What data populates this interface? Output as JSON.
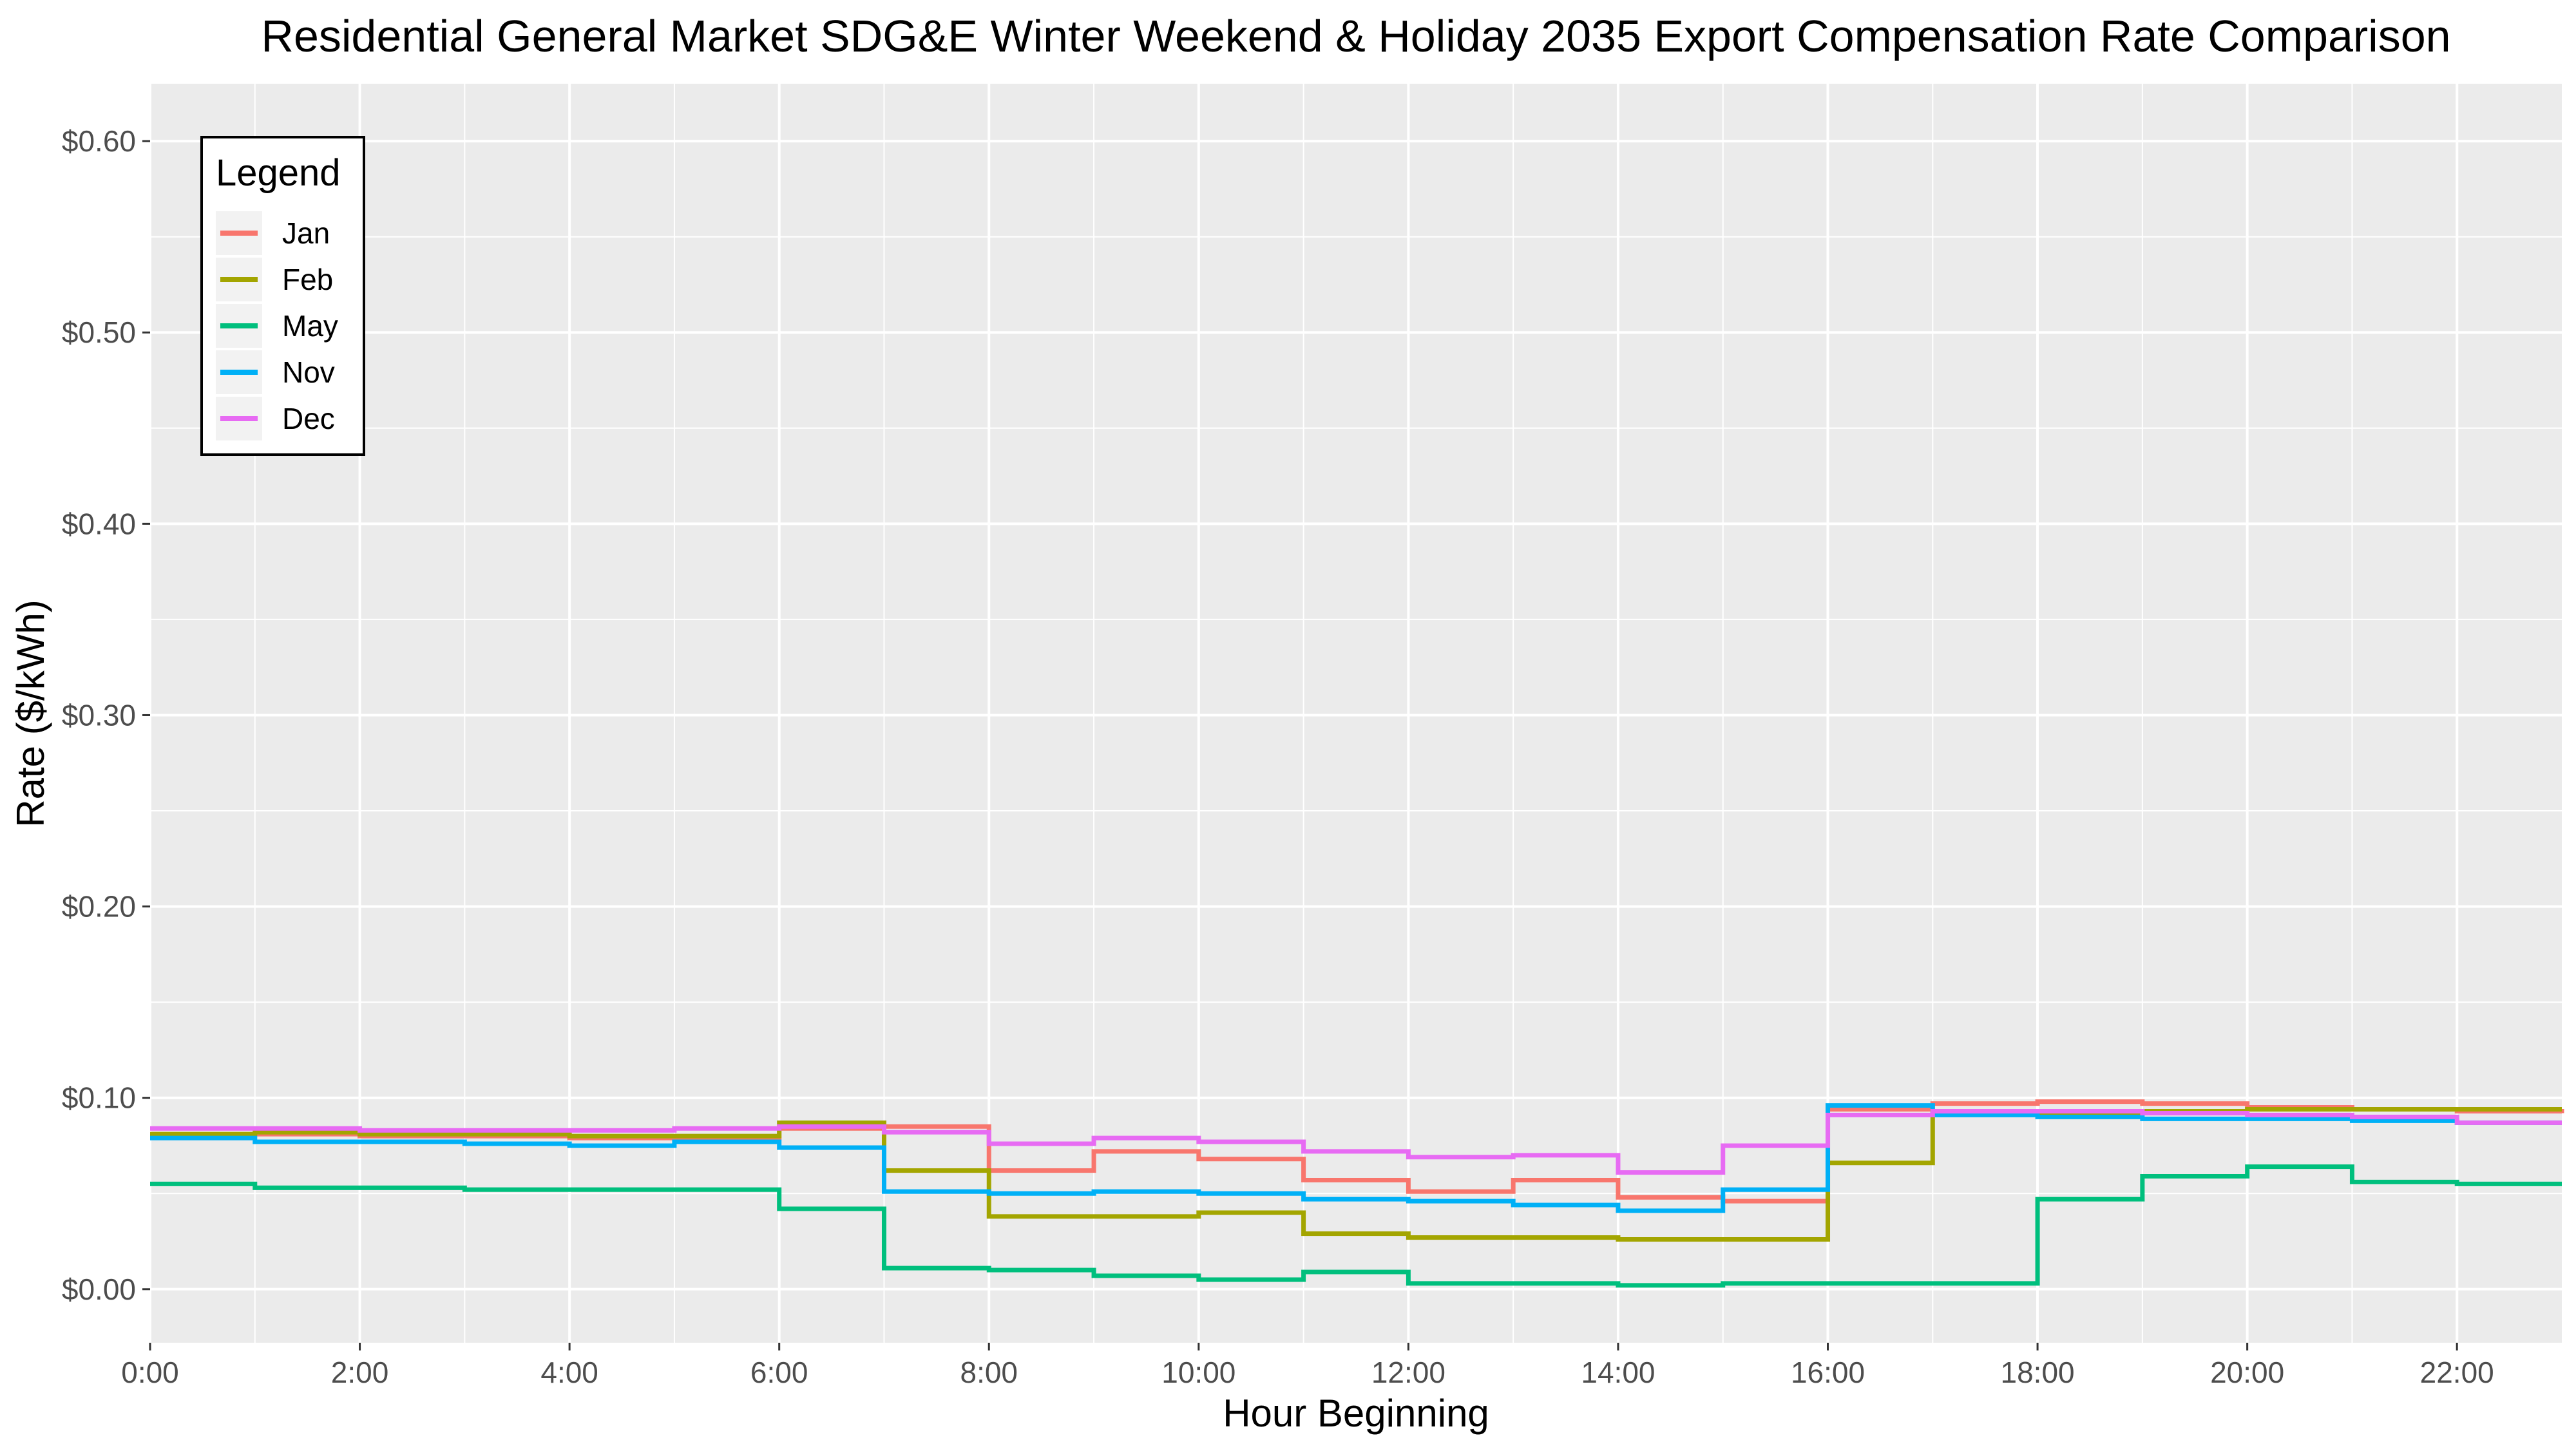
{
  "chart_data": {
    "type": "line",
    "step": true,
    "title": "Residential General Market SDG&E Winter Weekend & Holiday 2035 Export Compensation Rate Comparison",
    "xlabel": "Hour Beginning",
    "ylabel": "Rate ($/kWh)",
    "xlim": [
      0,
      23
    ],
    "ylim": [
      -0.028,
      0.63
    ],
    "x_ticks": [
      0,
      2,
      4,
      6,
      8,
      10,
      12,
      14,
      16,
      18,
      20,
      22
    ],
    "x_tick_labels": [
      "0:00",
      "2:00",
      "4:00",
      "6:00",
      "8:00",
      "10:00",
      "12:00",
      "14:00",
      "16:00",
      "18:00",
      "20:00",
      "22:00"
    ],
    "y_ticks": [
      0,
      0.1,
      0.2,
      0.3,
      0.4,
      0.5,
      0.6
    ],
    "y_tick_labels": [
      "$0.00",
      "$0.10",
      "$0.20",
      "$0.30",
      "$0.40",
      "$0.50",
      "$0.60"
    ],
    "grid": true,
    "legend": {
      "title": "Legend",
      "position": "top-left"
    },
    "x": [
      0,
      1,
      2,
      3,
      4,
      5,
      6,
      7,
      8,
      9,
      10,
      11,
      12,
      13,
      14,
      15,
      16,
      17,
      18,
      19,
      20,
      21,
      22,
      23
    ],
    "series": [
      {
        "name": "Jan",
        "color": "#F8766D",
        "values": [
          0.081,
          0.081,
          0.08,
          0.08,
          0.079,
          0.079,
          0.084,
          0.085,
          0.062,
          0.072,
          0.068,
          0.057,
          0.051,
          0.057,
          0.048,
          0.046,
          0.094,
          0.097,
          0.098,
          0.097,
          0.095,
          0.094,
          0.093,
          0.092
        ]
      },
      {
        "name": "Feb",
        "color": "#A3A500",
        "values": [
          0.081,
          0.082,
          0.081,
          0.081,
          0.08,
          0.08,
          0.087,
          0.062,
          0.038,
          0.038,
          0.04,
          0.029,
          0.027,
          0.027,
          0.026,
          0.026,
          0.066,
          0.092,
          0.092,
          0.093,
          0.094,
          0.094,
          0.094,
          0.094
        ]
      },
      {
        "name": "May",
        "color": "#00BF7D",
        "values": [
          0.055,
          0.053,
          0.053,
          0.052,
          0.052,
          0.052,
          0.042,
          0.011,
          0.01,
          0.007,
          0.005,
          0.009,
          0.003,
          0.003,
          0.002,
          0.003,
          0.003,
          0.003,
          0.047,
          0.059,
          0.064,
          0.056,
          0.055,
          0.055
        ]
      },
      {
        "name": "Nov",
        "color": "#00B0F6",
        "values": [
          0.079,
          0.077,
          0.077,
          0.076,
          0.075,
          0.077,
          0.074,
          0.051,
          0.05,
          0.051,
          0.05,
          0.047,
          0.046,
          0.044,
          0.041,
          0.052,
          0.096,
          0.091,
          0.09,
          0.089,
          0.089,
          0.088,
          0.087,
          0.087
        ]
      },
      {
        "name": "Dec",
        "color": "#E76BF3",
        "values": [
          0.084,
          0.084,
          0.083,
          0.083,
          0.083,
          0.084,
          0.085,
          0.082,
          0.076,
          0.079,
          0.077,
          0.072,
          0.069,
          0.07,
          0.061,
          0.075,
          0.091,
          0.093,
          0.093,
          0.092,
          0.091,
          0.09,
          0.087,
          0.087
        ]
      }
    ]
  }
}
